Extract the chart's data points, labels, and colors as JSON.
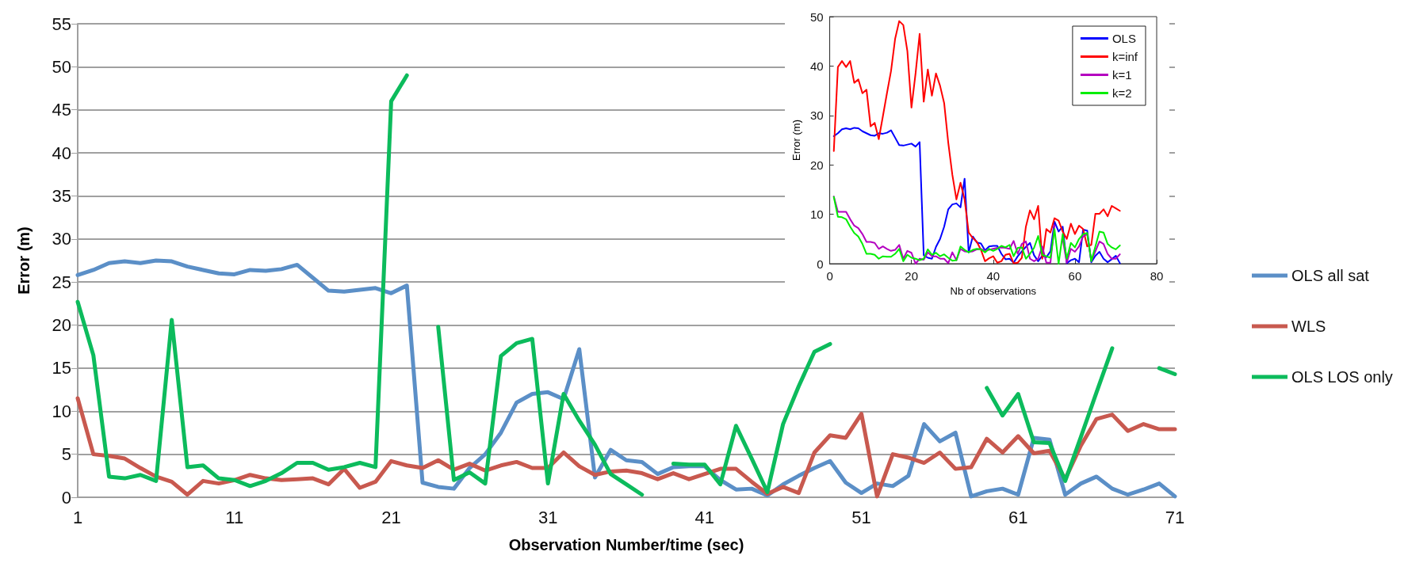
{
  "chart_data": [
    {
      "type": "line",
      "xlabel": "Observation Number/time (sec)",
      "ylabel": "Error (m)",
      "categories": [
        "1",
        null,
        null,
        null,
        null,
        null,
        null,
        null,
        null,
        null,
        "11",
        null,
        null,
        null,
        null,
        null,
        null,
        null,
        null,
        null,
        "21",
        null,
        null,
        null,
        null,
        null,
        null,
        null,
        null,
        null,
        "31",
        null,
        null,
        null,
        null,
        null,
        null,
        null,
        null,
        null,
        "41",
        null,
        null,
        null,
        null,
        null,
        null,
        null,
        null,
        null,
        "51",
        null,
        null,
        null,
        null,
        null,
        null,
        null,
        null,
        null,
        "61",
        null,
        null,
        null,
        null,
        null,
        null,
        null,
        null,
        null,
        "71"
      ],
      "ylim": [
        0,
        55
      ],
      "yticks": [
        0,
        5,
        10,
        15,
        20,
        25,
        30,
        35,
        40,
        45,
        50,
        55
      ],
      "grid": "y",
      "legend": "right",
      "marker": "none",
      "line_style": "solid",
      "series": [
        {
          "name": "OLS all sat",
          "color": "#5b8fc7",
          "values": [
            25.8,
            26.4,
            27.2,
            27.4,
            27.2,
            27.5,
            27.4,
            26.8,
            26.4,
            26.0,
            25.9,
            26.4,
            26.3,
            26.5,
            27.0,
            25.5,
            24.0,
            23.9,
            24.1,
            24.3,
            23.7,
            24.6,
            1.7,
            1.2,
            1.0,
            3.4,
            5.0,
            7.5,
            11.0,
            12.0,
            12.2,
            11.4,
            17.2,
            2.3,
            5.5,
            4.3,
            4.1,
            2.7,
            3.5,
            3.6,
            3.6,
            2.0,
            0.9,
            1.0,
            0.2,
            1.5,
            2.5,
            3.4,
            4.2,
            1.7,
            0.5,
            1.6,
            1.3,
            2.5,
            8.5,
            6.5,
            7.5,
            0.1,
            0.7,
            1.0,
            0.3,
            6.9,
            6.7,
            0.3,
            1.6,
            2.4,
            1.0,
            0.3,
            0.9,
            1.6,
            0.1
          ]
        },
        {
          "name": "WLS",
          "color": "#c8594f",
          "values": [
            11.5,
            5.0,
            4.8,
            4.5,
            3.4,
            2.4,
            1.8,
            0.3,
            1.9,
            1.6,
            2.0,
            2.6,
            2.2,
            2.0,
            2.1,
            2.2,
            1.5,
            3.3,
            1.1,
            1.8,
            4.2,
            3.7,
            3.4,
            4.3,
            3.2,
            3.9,
            3.1,
            3.7,
            4.1,
            3.4,
            3.4,
            5.2,
            3.6,
            2.6,
            3.0,
            3.1,
            2.8,
            2.1,
            2.8,
            2.1,
            2.7,
            3.3,
            3.3,
            1.8,
            0.4,
            1.2,
            0.5,
            5.2,
            7.2,
            6.9,
            9.7,
            0.1,
            5.0,
            4.6,
            4.0,
            5.2,
            3.3,
            3.5,
            6.8,
            5.2,
            7.1,
            5.1,
            5.4,
            2.1,
            6.0,
            9.1,
            9.6,
            7.7,
            8.5,
            7.9,
            7.9
          ]
        },
        {
          "name": "OLS LOS only",
          "color": "#0cbb5c",
          "values": [
            22.7,
            16.5,
            2.4,
            2.2,
            2.6,
            1.9,
            20.6,
            3.5,
            3.7,
            2.2,
            2.0,
            1.3,
            1.9,
            2.8,
            4.0,
            4.0,
            3.2,
            3.5,
            4.0,
            3.5,
            46.0,
            49.0,
            null,
            19.8,
            2.0,
            2.9,
            1.6,
            16.4,
            17.9,
            18.4,
            1.6,
            12.0,
            8.9,
            6.1,
            2.7,
            1.5,
            0.3,
            null,
            3.9,
            3.8,
            3.8,
            1.5,
            8.3,
            4.5,
            0.6,
            8.5,
            12.9,
            16.9,
            17.8,
            null,
            null,
            null,
            null,
            null,
            null,
            null,
            null,
            null,
            12.7,
            9.5,
            12.0,
            6.4,
            6.3,
            1.9,
            7.0,
            12.2,
            17.3,
            null,
            null,
            15.0,
            14.3
          ]
        }
      ]
    },
    {
      "type": "line",
      "xlabel": "Nb of observations",
      "ylabel": "Error (m)",
      "x": [
        1,
        2,
        3,
        4,
        5,
        6,
        7,
        8,
        9,
        10,
        11,
        12,
        13,
        14,
        15,
        16,
        17,
        18,
        19,
        20,
        21,
        22,
        23,
        24,
        25,
        26,
        27,
        28,
        29,
        30,
        31,
        32,
        33,
        34,
        35,
        36,
        37,
        38,
        39,
        40,
        41,
        42,
        43,
        44,
        45,
        46,
        47,
        48,
        49,
        50,
        51,
        52,
        53,
        54,
        55,
        56,
        57,
        58,
        59,
        60,
        61,
        62,
        63,
        64,
        65,
        66,
        67,
        68,
        69,
        70,
        71
      ],
      "xlim": [
        0,
        80
      ],
      "xticks": [
        0,
        20,
        40,
        60,
        80
      ],
      "ylim": [
        0,
        50
      ],
      "yticks": [
        0,
        10,
        20,
        30,
        40,
        50
      ],
      "legend": "top right",
      "marker": "none",
      "line_style": "solid",
      "series": [
        {
          "name": "OLS",
          "color": "#0000ff",
          "values": [
            25.8,
            26.4,
            27.2,
            27.4,
            27.2,
            27.5,
            27.4,
            26.8,
            26.4,
            26.0,
            25.9,
            26.4,
            26.3,
            26.5,
            27.0,
            25.5,
            24.0,
            23.9,
            24.1,
            24.3,
            23.7,
            24.6,
            1.7,
            1.2,
            1.0,
            3.4,
            5.0,
            7.5,
            11.0,
            12.0,
            12.2,
            11.4,
            17.2,
            2.3,
            5.5,
            4.3,
            4.1,
            2.7,
            3.5,
            3.6,
            3.6,
            2.0,
            0.9,
            1.0,
            0.2,
            1.5,
            2.5,
            3.4,
            4.2,
            1.7,
            0.5,
            1.6,
            1.3,
            2.5,
            8.5,
            6.5,
            7.5,
            0.1,
            0.7,
            1.0,
            0.3,
            6.9,
            6.7,
            0.3,
            1.6,
            2.4,
            1.0,
            0.3,
            0.9,
            1.6,
            0.1
          ]
        },
        {
          "name": "k=inf",
          "color": "#ff0000",
          "values": [
            22.8,
            39.8,
            41.0,
            39.8,
            41.0,
            36.6,
            37.3,
            34.5,
            35.2,
            27.8,
            28.5,
            25.2,
            29.8,
            34.5,
            39.0,
            45.5,
            49.1,
            48.3,
            43.0,
            31.6,
            38.5,
            46.5,
            32.8,
            39.3,
            34.0,
            38.5,
            36.0,
            32.5,
            24.5,
            18.0,
            13.0,
            16.4,
            13.0,
            6.3,
            5.2,
            4.4,
            2.8,
            0.5,
            1.1,
            1.5,
            0.2,
            0.5,
            1.8,
            2.0,
            0.1,
            0.2,
            1.2,
            7.5,
            10.8,
            9.0,
            11.7,
            1.0,
            7.0,
            6.3,
            9.2,
            8.7,
            6.5,
            5.0,
            8.1,
            6.0,
            7.7,
            7.0,
            3.5,
            3.8,
            10.1,
            10.1,
            11.0,
            9.6,
            11.7,
            11.2,
            10.7
          ]
        },
        {
          "name": "k=1",
          "color": "#b400c0",
          "values": [
            13.6,
            10.5,
            10.5,
            10.5,
            9.0,
            7.7,
            7.2,
            6.0,
            4.4,
            4.4,
            4.2,
            3.0,
            3.5,
            3.0,
            2.6,
            2.8,
            3.8,
            1.0,
            2.6,
            2.2,
            0.0,
            1.0,
            0.8,
            2.3,
            1.5,
            1.5,
            1.0,
            1.0,
            0.1,
            2.3,
            0.7,
            3.0,
            2.5,
            2.4,
            2.5,
            2.9,
            3.0,
            2.6,
            2.8,
            3.0,
            3.2,
            3.3,
            3.2,
            3.0,
            4.6,
            2.0,
            4.0,
            4.5,
            1.0,
            0.5,
            1.0,
            3.5,
            0.2,
            0.2,
            7.8,
            null,
            5.0,
            0.2,
            3.0,
            2.4,
            3.5,
            5.5,
            6.0,
            0.5,
            2.5,
            4.5,
            4.0,
            2.0,
            1.0,
            1.0,
            1.9
          ]
        },
        {
          "name": "k=2",
          "color": "#00ee00",
          "values": [
            13.5,
            9.5,
            9.4,
            9.0,
            7.5,
            6.2,
            5.5,
            4.0,
            2.0,
            2.0,
            1.8,
            1.0,
            1.5,
            1.4,
            1.4,
            2.0,
            3.0,
            0.5,
            1.8,
            1.2,
            1.0,
            0.7,
            1.0,
            2.9,
            1.8,
            2.2,
            1.5,
            1.9,
            1.2,
            0.6,
            0.7,
            3.5,
            2.8,
            2.3,
            2.8,
            3.0,
            2.9,
            2.3,
            3.0,
            2.6,
            3.0,
            3.6,
            3.3,
            3.8,
            1.5,
            3.2,
            3.3,
            1.0,
            2.0,
            3.2,
            5.6,
            1.8,
            1.5,
            1.2,
            7.0,
            0.0,
            6.0,
            1.0,
            4.2,
            3.3,
            5.0,
            6.0,
            6.2,
            0.5,
            3.5,
            6.5,
            6.3,
            4.0,
            3.3,
            2.9,
            3.7
          ]
        }
      ]
    }
  ]
}
